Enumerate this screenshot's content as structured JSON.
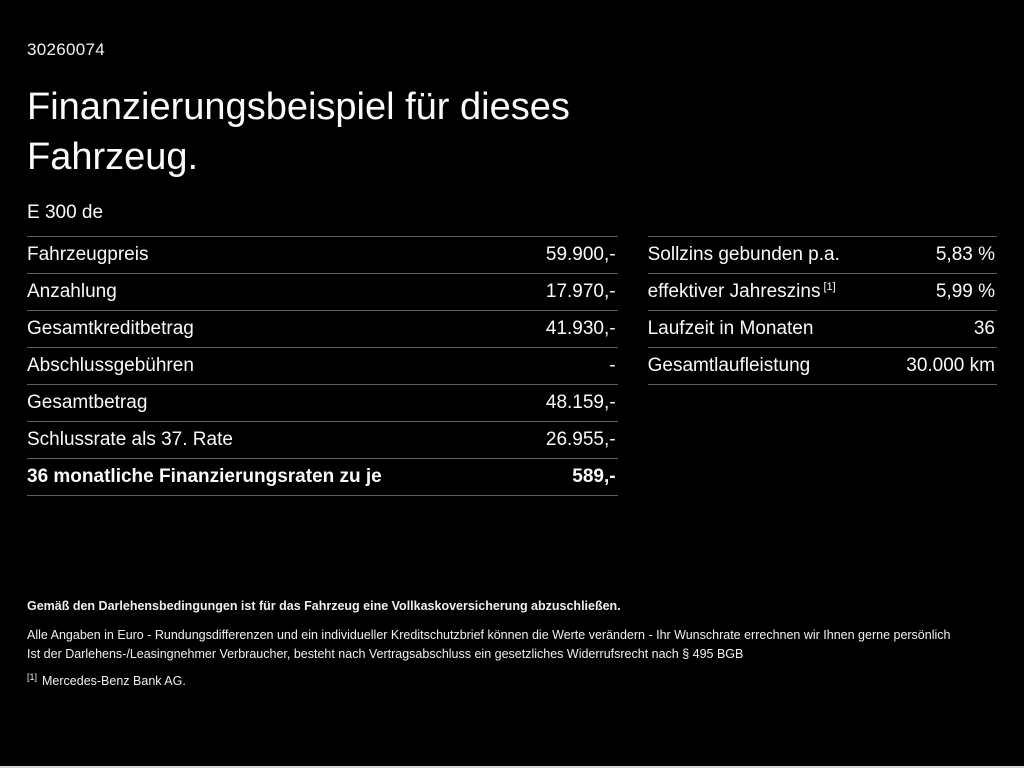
{
  "page": {
    "id": "30260074",
    "title_line1": "Finanzierungsbeispiel für dieses",
    "title_line2": "Fahrzeug.",
    "model": "E 300 de"
  },
  "left_table": {
    "rows": [
      {
        "label": "Fahrzeugpreis",
        "value": "59.900,-"
      },
      {
        "label": "Anzahlung",
        "value": "17.970,-"
      },
      {
        "label": "Gesamtkreditbetrag",
        "value": "41.930,-"
      },
      {
        "label": "Abschlussgebühren",
        "value": "-"
      },
      {
        "label": "Gesamtbetrag",
        "value": "48.159,-"
      },
      {
        "label": "Schlussrate als 37. Rate",
        "value": "26.955,-"
      },
      {
        "label": "36 monatliche Finanzierungsraten zu je",
        "value": "589,-"
      }
    ]
  },
  "right_table": {
    "rows": [
      {
        "label": "Sollzins gebunden p.a.",
        "value": "5,83 %"
      },
      {
        "label": "effektiver Jahreszins",
        "footnote": "[1]",
        "value": "5,99 %"
      },
      {
        "label": "Laufzeit in Monaten",
        "value": "36"
      },
      {
        "label": "Gesamtlaufleistung",
        "value": "30.000 km"
      }
    ]
  },
  "footer": {
    "insurance_note": "Gemäß den Darlehensbedingungen ist für das Fahrzeug eine Vollkaskoversicherung abzuschließen.",
    "disclaimer1": "Alle Angaben in Euro - Rundungsdifferenzen und ein individueller Kreditschutzbrief können die Werte verändern - Ihr Wunschrate errechnen wir Ihnen gerne persönlich",
    "disclaimer2": "Ist der Darlehens-/Leasingnehmer Verbraucher, besteht nach Vertragsabschluss ein gesetzliches Widerrufsrecht nach § 495 BGB",
    "footnote_marker": "[1]",
    "footnote_text": "Mercedes-Benz Bank AG."
  },
  "colors": {
    "background": "#000000",
    "text": "#fafafa",
    "divider": "#5e5e5e"
  }
}
